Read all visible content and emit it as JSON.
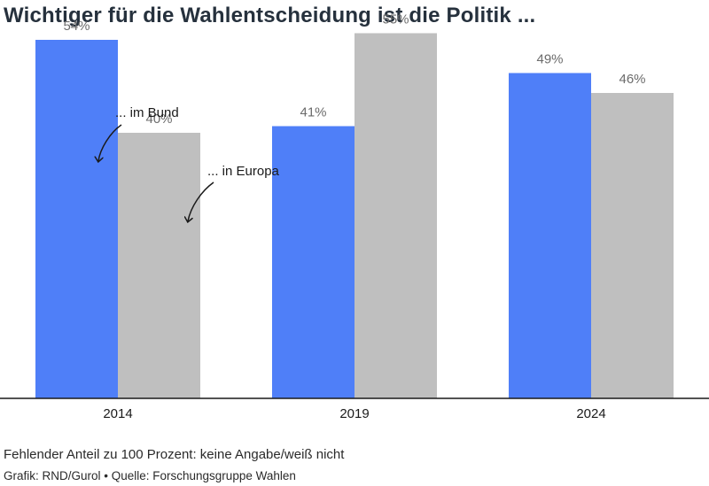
{
  "title": "Wichtiger für die Wahlentscheidung ist die Politik ...",
  "note": "Fehlender Anteil zu 100 Prozent: keine Angabe/weiß nicht",
  "source": "Grafik: RND/Gurol • Quelle: Forschungsgruppe Wahlen",
  "colors": {
    "bund": "#4f7ff8",
    "europa": "#bfbfbf",
    "axis": "#1a1a1a",
    "label": "#6b6b6b"
  },
  "chart_data": {
    "type": "bar",
    "categories": [
      "2014",
      "2019",
      "2024"
    ],
    "series": [
      {
        "name": "... im Bund",
        "values": [
          54,
          41,
          49
        ],
        "labels": [
          "54%",
          "41%",
          "49%"
        ]
      },
      {
        "name": "... in Europa",
        "values": [
          40,
          55,
          46
        ],
        "labels": [
          "40%",
          "55%",
          "46%"
        ]
      }
    ],
    "ylim": [
      0,
      60
    ],
    "grid": false,
    "legend": "annotations with arrows on 2014 bars"
  }
}
